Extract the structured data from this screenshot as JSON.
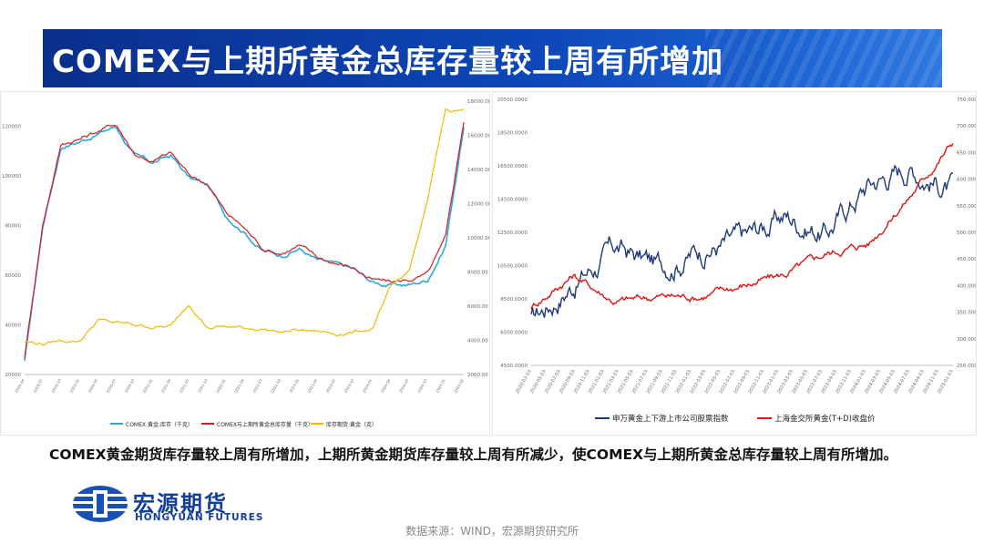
{
  "header": {
    "title": "COMEX与上期所黄金总库存量较上周有所增加"
  },
  "caption": "COMEX黄金期货库存量较上周有所增加，上期所黄金期货库存量较上周有所减少，使COMEX与上期所黄金总库存量较上周有所增加。",
  "logo": {
    "cn": "宏源期货",
    "en": "HONGYUAN FUTURES"
  },
  "source": "数据来源：WIND，宏源期货研究所",
  "colors": {
    "banner": "#0d47b8",
    "comex": "#29a8e0",
    "total": "#e01a1a",
    "shfe": "#f5b800",
    "index": "#1f3a7a",
    "spot": "#e31515"
  },
  "chart_data": [
    {
      "type": "line",
      "title": "",
      "xlabel": "",
      "ylabel": "",
      "x": [
        "2019-04",
        "2019-07",
        "2019-10",
        "2020-01",
        "2020-04",
        "2020-07",
        "2020-10",
        "2021-01",
        "2021-04",
        "2021-07",
        "2021-10",
        "2022-01",
        "2022-04",
        "2022-07",
        "2022-10",
        "2023-01",
        "2023-04",
        "2023-07",
        "2023-10",
        "2024-01",
        "2024-04",
        "2024-07",
        "2024-10",
        "2025-01",
        "2025-02"
      ],
      "y_left_ticks": [
        "20000",
        "40000",
        "60000",
        "80000",
        "100000",
        "120000"
      ],
      "y_right_ticks": [
        "2000.00",
        "4000.00",
        "6000.00",
        "8000.00",
        "10000.00",
        "12000.00",
        "14000.00",
        "16000.00",
        "18000.00"
      ],
      "ylim_left": [
        20000,
        130000
      ],
      "ylim_right": [
        2000,
        18000
      ],
      "legend_position": "bottom",
      "series": [
        {
          "name": "COMEX:黄金:库存（千克）",
          "axis": "left",
          "values": [
            25000,
            80000,
            112000,
            114000,
            117000,
            120000,
            108000,
            105000,
            108000,
            99000,
            96000,
            84000,
            78000,
            70000,
            68000,
            71000,
            66000,
            64000,
            62000,
            57000,
            56000,
            56000,
            58000,
            72000,
            120000
          ]
        },
        {
          "name": "COMEX与上期所黄金总库存量（千克）",
          "axis": "left",
          "values": [
            27000,
            81000,
            113000,
            115000,
            118000,
            121000,
            109000,
            106000,
            109000,
            100000,
            97000,
            85000,
            79000,
            71000,
            69000,
            72000,
            67000,
            65000,
            63000,
            58000,
            57000,
            58000,
            60000,
            74000,
            122000
          ]
        },
        {
          "name": "库存期货:黄金（克）",
          "axis": "right",
          "values": [
            3900,
            3800,
            4000,
            4000,
            5200,
            5000,
            4900,
            4800,
            4800,
            6200,
            4800,
            4800,
            4700,
            4700,
            4500,
            4600,
            4500,
            4400,
            4500,
            4700,
            7000,
            8000,
            12000,
            17500,
            17500
          ]
        }
      ]
    },
    {
      "type": "line",
      "title": "",
      "xlabel": "",
      "ylabel": "",
      "x": [
        "2020-03-03",
        "2020-09-03",
        "2021-03-03",
        "2021-09-03",
        "2022-03-03",
        "2022-09-03",
        "2023-03-03",
        "2023-09-03",
        "2024-03-03",
        "2024-09-03",
        "2025-03-03"
      ],
      "x_tick_labels": [
        "2020-03-03",
        "2020-05-03",
        "2020-07-03",
        "2020-09-03",
        "2020-11-03",
        "2021-01-03",
        "2021-03-03",
        "2021-05-03",
        "2021-07-03",
        "2021-09-03",
        "2021-11-03",
        "2022-01-03",
        "2022-03-03",
        "2022-05-03",
        "2022-07-03",
        "2022-09-03",
        "2022-11-03",
        "2023-01-03",
        "2023-03-03",
        "2023-05-03",
        "2023-07-03",
        "2023-09-03",
        "2023-11-03",
        "2024-01-03",
        "2024-03-03",
        "2024-05-03",
        "2024-07-03",
        "2024-09-03",
        "2024-11-03",
        "2025-01-03"
      ],
      "y_left_ticks": [
        "4500.0000",
        "6500.0000",
        "8500.0000",
        "10500.0000",
        "12500.0000",
        "14500.0000",
        "16500.0000",
        "18500.0000",
        "20500.0000"
      ],
      "y_right_ticks": [
        "250.0000",
        "300.0000",
        "350.0000",
        "400.0000",
        "450.0000",
        "500.0000",
        "550.0000",
        "600.0000",
        "650.0000",
        "700.0000",
        "750.0000"
      ],
      "ylim_left": [
        4500,
        20500
      ],
      "ylim_right": [
        250,
        750
      ],
      "legend_position": "bottom",
      "series": [
        {
          "name": "申万黄金上下游上市公司股票指数",
          "axis": "left",
          "values": [
            7200,
            9500,
            11500,
            10500,
            11500,
            12000,
            13500,
            12500,
            15500,
            16500,
            15000
          ]
        },
        {
          "name": "上海金交所黄金(T+D)收盘价",
          "axis": "right",
          "values": [
            360,
            420,
            370,
            380,
            380,
            400,
            420,
            460,
            480,
            570,
            670
          ]
        }
      ]
    }
  ]
}
